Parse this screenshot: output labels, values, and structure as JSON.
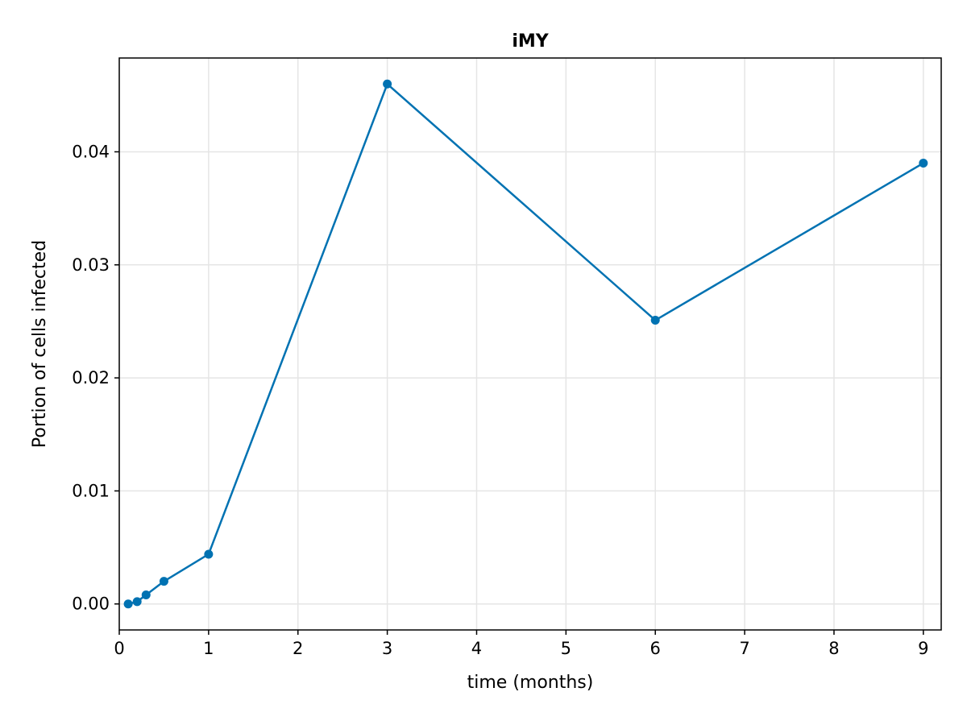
{
  "chart_data": {
    "type": "line",
    "title": "iMY",
    "xlabel": "time (months)",
    "ylabel": "Portion of cells infected",
    "xlim": [
      0,
      9.2
    ],
    "ylim": [
      -0.0023,
      0.0483
    ],
    "x_ticks": [
      0,
      1,
      2,
      3,
      4,
      5,
      6,
      7,
      8,
      9
    ],
    "x_tick_labels": [
      "0",
      "1",
      "2",
      "3",
      "4",
      "5",
      "6",
      "7",
      "8",
      "9"
    ],
    "y_ticks": [
      0.0,
      0.01,
      0.02,
      0.03,
      0.04
    ],
    "y_tick_labels": [
      "0.00",
      "0.01",
      "0.02",
      "0.03",
      "0.04"
    ],
    "grid": true,
    "series": [
      {
        "color": "#0072b2",
        "marker": "circle",
        "x": [
          0.1,
          0.2,
          0.3,
          0.5,
          1,
          3,
          6,
          9
        ],
        "y": [
          0.0,
          0.0002,
          0.0008,
          0.002,
          0.0044,
          0.046,
          0.0251,
          0.039
        ]
      }
    ]
  }
}
